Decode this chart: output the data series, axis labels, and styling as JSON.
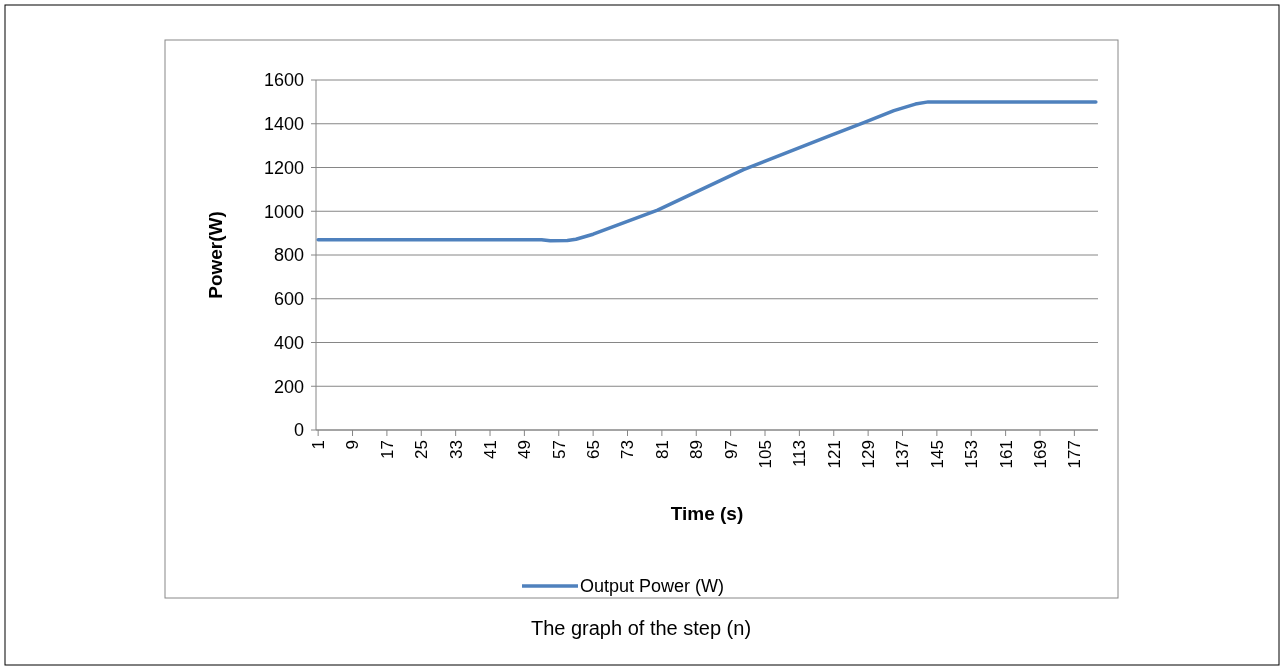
{
  "chart_data": {
    "type": "line",
    "xlabel": "Time (s)",
    "ylabel": "Power(W)",
    "x": [
      1,
      53,
      55,
      59,
      61,
      65,
      80,
      100,
      120,
      128,
      135,
      140,
      143,
      182
    ],
    "series": [
      {
        "name": "Output Power (W)",
        "color": "#4f81bd",
        "values": [
          870,
          870,
          865,
          866,
          872,
          895,
          1005,
          1190,
          1345,
          1405,
          1460,
          1490,
          1500,
          1500
        ]
      }
    ],
    "xlim": [
      0.5,
      182.5
    ],
    "xticks": [
      1,
      9,
      17,
      25,
      33,
      41,
      49,
      57,
      65,
      73,
      81,
      89,
      97,
      105,
      113,
      121,
      129,
      137,
      145,
      153,
      161,
      169,
      177
    ],
    "ylim": [
      0,
      1600
    ],
    "yticks": [
      0,
      200,
      400,
      600,
      800,
      1000,
      1200,
      1400,
      1600
    ],
    "grid": "y",
    "legend": "bottom",
    "marker": "none",
    "line_style": "solid",
    "annotations": [
      "The graph of the step (n)"
    ]
  }
}
